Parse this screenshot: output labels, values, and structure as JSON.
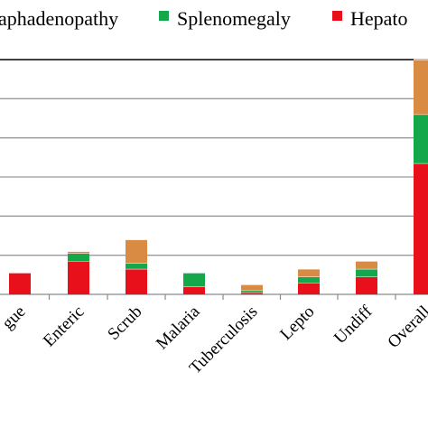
{
  "chart_data": {
    "type": "bar",
    "stacked": true,
    "categories": [
      "gue",
      "Enteric",
      "Scrub",
      "Malaria",
      "Tuberculosis",
      "Lepto",
      "Undiff",
      "Overall"
    ],
    "ylim": [
      0,
      60
    ],
    "grid": true,
    "legend_position": "top",
    "series": [
      {
        "name": "Hepato",
        "color": "#e8101a",
        "values": [
          5.5,
          8.5,
          6.5,
          2.0,
          0.5,
          3.0,
          4.5,
          33.5
        ]
      },
      {
        "name": "Splenomegaly",
        "color": "#14a84a",
        "values": [
          0,
          2.0,
          1.5,
          3.5,
          0.5,
          1.5,
          2.0,
          12.5
        ]
      },
      {
        "name": "aphadenopathy",
        "color": "#d98b44",
        "values": [
          0,
          0.5,
          6.0,
          0,
          1.5,
          2.0,
          2.0,
          14.0
        ]
      }
    ]
  }
}
